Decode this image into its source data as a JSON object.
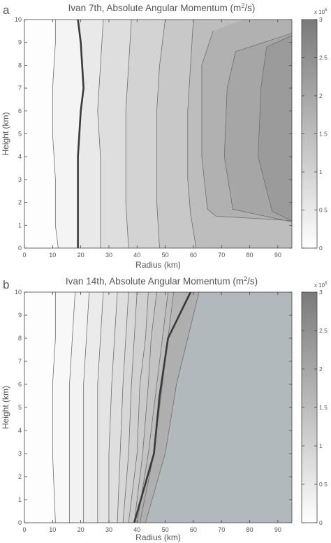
{
  "chart_data": [
    {
      "panel_label": "a",
      "type": "contour",
      "title_text": "Ivan 7th, Absolute Angular Momentum (m",
      "title_sup": "2",
      "title_tail": "/s)",
      "xlabel": "Radius (km)",
      "ylabel": "Height (km)",
      "xlim": [
        0,
        95
      ],
      "ylim": [
        0,
        10
      ],
      "xticks": [
        "0",
        "10",
        "20",
        "30",
        "40",
        "50",
        "60",
        "70",
        "80",
        "90"
      ],
      "yticks": [
        "0",
        "1",
        "2",
        "3",
        "4",
        "5",
        "6",
        "7",
        "8",
        "9",
        "10"
      ],
      "colorbar": {
        "ticks": [
          "0",
          "0.5",
          "1",
          "1.5",
          "2",
          "2.5",
          "3"
        ],
        "range": [
          0,
          3
        ],
        "multiplier_base": "x 10",
        "multiplier_exp": "6",
        "low_color": "#ffffff",
        "high_color": "#7a7a7a"
      },
      "contours": [
        {
          "level": 0.25,
          "points": [
            [
              11,
              10
            ],
            [
              11,
              9
            ],
            [
              10,
              7
            ],
            [
              10,
              5
            ],
            [
              11,
              3
            ],
            [
              11,
              1
            ],
            [
              12,
              0
            ]
          ]
        },
        {
          "level": 0.5,
          "points": [
            [
              19,
              10
            ],
            [
              20,
              9
            ],
            [
              21,
              7
            ],
            [
              20,
              6
            ],
            [
              19,
              4
            ],
            [
              19,
              2
            ],
            [
              19,
              0
            ]
          ],
          "highlight": true
        },
        {
          "level": 0.75,
          "points": [
            [
              28,
              10
            ],
            [
              27,
              8
            ],
            [
              26,
              6
            ],
            [
              27,
              4
            ],
            [
              27,
              2
            ],
            [
              27,
              0
            ]
          ]
        },
        {
          "level": 1.0,
          "points": [
            [
              38,
              10
            ],
            [
              37,
              8
            ],
            [
              36,
              6
            ],
            [
              36,
              4
            ],
            [
              36,
              2
            ],
            [
              37,
              0
            ]
          ]
        },
        {
          "level": 1.25,
          "points": [
            [
              50,
              10
            ],
            [
              48,
              8
            ],
            [
              47,
              6
            ],
            [
              47,
              4
            ],
            [
              47,
              2
            ],
            [
              48,
              0
            ]
          ]
        },
        {
          "level": 1.5,
          "points": [
            [
              60,
              10
            ],
            [
              59,
              8
            ],
            [
              58,
              6
            ],
            [
              58,
              3
            ],
            [
              59,
              1.5
            ],
            [
              61,
              0
            ]
          ]
        },
        {
          "level": 1.75,
          "points": [
            [
              67,
              9.5
            ],
            [
              63,
              8
            ],
            [
              63,
              4
            ],
            [
              65,
              1.7
            ],
            [
              68,
              1.4
            ],
            [
              95,
              1.2
            ]
          ]
        },
        {
          "level": 2.0,
          "points": [
            [
              95,
              9.4
            ],
            [
              75,
              8.6
            ],
            [
              72,
              7
            ],
            [
              71,
              4
            ],
            [
              74,
              1.7
            ],
            [
              95,
              1.15
            ]
          ]
        },
        {
          "level": 2.25,
          "points": [
            [
              95,
              9.3
            ],
            [
              86,
              8.8
            ],
            [
              84,
              7
            ],
            [
              83,
              4
            ],
            [
              88,
              1.6
            ],
            [
              95,
              1.2
            ]
          ]
        }
      ]
    },
    {
      "panel_label": "b",
      "type": "contour",
      "title_text": "Ivan 14th, Absolute Angular Momentum (m",
      "title_sup": "2",
      "title_tail": "/s)",
      "xlabel": "Radius (km)",
      "ylabel": "Height (km)",
      "xlim": [
        0,
        95
      ],
      "ylim": [
        0,
        10
      ],
      "xticks": [
        "0",
        "10",
        "20",
        "30",
        "40",
        "50",
        "60",
        "70",
        "80",
        "90"
      ],
      "yticks": [
        "0",
        "1",
        "2",
        "3",
        "4",
        "5",
        "6",
        "7",
        "8",
        "9",
        "10"
      ],
      "colorbar": {
        "ticks": [
          "0",
          "0.5",
          "1",
          "1.5",
          "2",
          "2.5",
          "3"
        ],
        "range": [
          0,
          3
        ],
        "multiplier_base": "x 10",
        "multiplier_exp": "6",
        "low_color": "#ffffff",
        "high_color": "#7a7a7a"
      },
      "plateau": {
        "level": 2.2,
        "color": "#b2b9bd"
      },
      "contours": [
        {
          "level": 0.15,
          "points": [
            [
              11,
              0
            ],
            [
              10,
              3
            ],
            [
              10,
              6
            ],
            [
              11,
              8
            ],
            [
              11,
              10
            ]
          ]
        },
        {
          "level": 0.3,
          "points": [
            [
              16,
              0
            ],
            [
              16,
              3
            ],
            [
              16,
              6
            ],
            [
              17,
              8
            ],
            [
              18,
              10
            ]
          ]
        },
        {
          "level": 0.45,
          "points": [
            [
              21,
              0
            ],
            [
              21,
              3
            ],
            [
              21,
              6
            ],
            [
              22,
              8
            ],
            [
              23,
              10
            ]
          ]
        },
        {
          "level": 0.6,
          "points": [
            [
              26,
              0
            ],
            [
              26,
              3
            ],
            [
              26,
              6
            ],
            [
              27,
              8
            ],
            [
              28,
              10
            ]
          ]
        },
        {
          "level": 0.75,
          "points": [
            [
              30,
              0
            ],
            [
              30,
              3
            ],
            [
              31,
              6
            ],
            [
              32,
              8
            ],
            [
              33,
              10
            ]
          ]
        },
        {
          "level": 0.9,
          "points": [
            [
              33,
              0
            ],
            [
              34,
              3
            ],
            [
              35,
              6
            ],
            [
              36,
              8
            ],
            [
              37,
              10
            ]
          ]
        },
        {
          "level": 1.05,
          "points": [
            [
              35,
              0
            ],
            [
              37,
              3
            ],
            [
              38,
              6
            ],
            [
              39,
              8
            ],
            [
              40,
              10
            ]
          ]
        },
        {
          "level": 1.2,
          "points": [
            [
              37,
              0
            ],
            [
              40,
              3
            ],
            [
              41,
              6
            ],
            [
              43,
              8
            ],
            [
              44,
              10
            ]
          ]
        },
        {
          "level": 1.35,
          "points": [
            [
              39,
              0
            ],
            [
              42,
              3
            ],
            [
              44,
              6
            ],
            [
              45,
              8
            ],
            [
              47,
              10
            ]
          ]
        },
        {
          "level": 1.5,
          "points": [
            [
              40,
              0
            ],
            [
              44,
              3
            ],
            [
              47,
              6
            ],
            [
              49,
              8
            ],
            [
              51,
              10
            ]
          ]
        },
        {
          "level": 1.65,
          "points": [
            [
              41,
              0
            ],
            [
              46,
              3
            ],
            [
              49,
              6
            ],
            [
              51,
              8
            ],
            [
              53,
              10
            ]
          ]
        },
        {
          "level": 1.8,
          "points": [
            [
              39,
              0
            ],
            [
              46,
              3
            ],
            [
              48,
              5.5
            ],
            [
              51,
              8
            ],
            [
              57,
              9.5
            ],
            [
              59,
              10
            ]
          ],
          "highlight": true
        },
        {
          "level": 2.0,
          "points": [
            [
              43,
              0
            ],
            [
              50,
              3
            ],
            [
              54,
              6
            ],
            [
              58,
              8
            ],
            [
              62,
              10
            ]
          ]
        }
      ]
    }
  ]
}
